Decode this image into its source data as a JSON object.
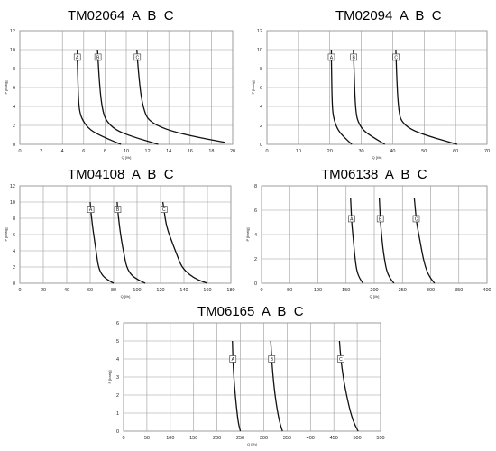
{
  "charts": [
    {
      "id": "tm02064",
      "title": "TM02064  A  B  C",
      "chart_data": {
        "type": "line",
        "title": "TM02064  A  B  C",
        "xlabel": "Q [l/h]",
        "ylabel": "P [bar/g]",
        "xlim": [
          0,
          20
        ],
        "ylim": [
          0,
          12
        ],
        "xticks": [
          "0",
          "2",
          "4",
          "6",
          "8",
          "10",
          "12",
          "14",
          "16",
          "18",
          "20"
        ],
        "yticks": [
          "0",
          "2",
          "4",
          "6",
          "8",
          "10",
          "12"
        ],
        "grid": true,
        "marker_y": 9.2,
        "series": [
          {
            "name": "A",
            "points": [
              [
                5.4,
                10
              ],
              [
                5.4,
                9
              ],
              [
                5.45,
                7
              ],
              [
                5.5,
                5
              ],
              [
                5.6,
                3.5
              ],
              [
                5.9,
                2.5
              ],
              [
                6.6,
                1.5
              ],
              [
                7.8,
                0.8
              ],
              [
                9.5,
                0
              ]
            ]
          },
          {
            "name": "B",
            "points": [
              [
                7.3,
                10
              ],
              [
                7.35,
                9
              ],
              [
                7.45,
                7
              ],
              [
                7.6,
                5
              ],
              [
                7.8,
                3.5
              ],
              [
                8.1,
                2.5
              ],
              [
                9.0,
                1.5
              ],
              [
                10.6,
                0.8
              ],
              [
                13.0,
                0
              ]
            ]
          },
          {
            "name": "C",
            "points": [
              [
                11.0,
                10
              ],
              [
                11.05,
                9
              ],
              [
                11.2,
                7
              ],
              [
                11.4,
                5
              ],
              [
                11.7,
                3.5
              ],
              [
                12.1,
                2.5
              ],
              [
                13.6,
                1.6
              ],
              [
                16.0,
                0.9
              ],
              [
                19.3,
                0.2
              ]
            ]
          }
        ]
      }
    },
    {
      "id": "tm02094",
      "title": "TM02094  A  B  C",
      "chart_data": {
        "type": "line",
        "title": "TM02094  A  B  C",
        "xlabel": "Q [l/h]",
        "ylabel": "P [bar/g]",
        "xlim": [
          0,
          70
        ],
        "ylim": [
          0,
          12
        ],
        "xticks": [
          "0",
          "10",
          "20",
          "30",
          "40",
          "50",
          "60",
          "70"
        ],
        "yticks": [
          "0",
          "2",
          "4",
          "6",
          "8",
          "10",
          "12"
        ],
        "grid": true,
        "marker_y": 9.2,
        "series": [
          {
            "name": "A",
            "points": [
              [
                20.5,
                10
              ],
              [
                20.5,
                9
              ],
              [
                20.6,
                7
              ],
              [
                20.7,
                5
              ],
              [
                20.9,
                3.5
              ],
              [
                21.4,
                2.5
              ],
              [
                22.6,
                1.5
              ],
              [
                24.4,
                0.8
              ],
              [
                27.0,
                0
              ]
            ]
          },
          {
            "name": "B",
            "points": [
              [
                27.5,
                10
              ],
              [
                27.6,
                9
              ],
              [
                27.8,
                7
              ],
              [
                28.0,
                5
              ],
              [
                28.3,
                3.5
              ],
              [
                28.8,
                2.5
              ],
              [
                30.5,
                1.5
              ],
              [
                33.5,
                0.8
              ],
              [
                37.5,
                0
              ]
            ]
          },
          {
            "name": "C",
            "points": [
              [
                41.0,
                10
              ],
              [
                41.1,
                9
              ],
              [
                41.3,
                7
              ],
              [
                41.6,
                5
              ],
              [
                42.0,
                3.5
              ],
              [
                42.6,
                2.5
              ],
              [
                45.5,
                1.6
              ],
              [
                51.0,
                0.9
              ],
              [
                60.5,
                0
              ]
            ]
          }
        ]
      }
    },
    {
      "id": "tm04108",
      "title": "TM04108  A  B  C",
      "chart_data": {
        "type": "line",
        "title": "TM04108  A  B  C",
        "xlabel": "Q [l/h]",
        "ylabel": "P [bar/g]",
        "xlim": [
          0,
          180
        ],
        "ylim": [
          0,
          12
        ],
        "xticks": [
          "0",
          "20",
          "40",
          "60",
          "80",
          "100",
          "120",
          "140",
          "160",
          "180"
        ],
        "yticks": [
          "0",
          "2",
          "4",
          "6",
          "8",
          "10",
          "12"
        ],
        "grid": true,
        "marker_y": 9.1,
        "series": [
          {
            "name": "A",
            "points": [
              [
                60,
                10
              ],
              [
                60.5,
                9
              ],
              [
                62,
                7
              ],
              [
                64,
                5
              ],
              [
                65.5,
                3.5
              ],
              [
                67,
                2
              ],
              [
                70,
                1
              ],
              [
                75,
                0.4
              ],
              [
                80,
                0
              ]
            ]
          },
          {
            "name": "B",
            "points": [
              [
                83,
                10
              ],
              [
                83.5,
                9
              ],
              [
                85,
                7
              ],
              [
                87,
                5
              ],
              [
                89,
                3.5
              ],
              [
                91,
                2
              ],
              [
                95,
                1
              ],
              [
                101,
                0.4
              ],
              [
                107,
                0
              ]
            ]
          },
          {
            "name": "C",
            "points": [
              [
                122,
                10
              ],
              [
                123,
                9
              ],
              [
                125,
                7
              ],
              [
                130,
                5
              ],
              [
                134,
                3.5
              ],
              [
                138,
                2
              ],
              [
                145,
                1
              ],
              [
                152,
                0.4
              ],
              [
                160,
                0
              ]
            ]
          }
        ]
      }
    },
    {
      "id": "tm06138",
      "title": "TM06138  A  B  C",
      "chart_data": {
        "type": "line",
        "title": "TM06138  A  B  C",
        "xlabel": "Q [l/h]",
        "ylabel": "P [bar/g]",
        "xlim": [
          0,
          400
        ],
        "ylim": [
          0,
          8
        ],
        "xticks": [
          "0",
          "50",
          "100",
          "150",
          "200",
          "250",
          "300",
          "350",
          "400"
        ],
        "yticks": [
          "0",
          "2",
          "4",
          "6",
          "8"
        ],
        "grid": true,
        "marker_y": 5.3,
        "series": [
          {
            "name": "A",
            "points": [
              [
                158,
                7
              ],
              [
                159,
                6
              ],
              [
                160,
                5
              ],
              [
                162,
                4
              ],
              [
                164,
                3
              ],
              [
                166,
                2
              ],
              [
                169,
                1
              ],
              [
                174,
                0.4
              ],
              [
                180,
                0
              ]
            ]
          },
          {
            "name": "B",
            "points": [
              [
                209,
                7
              ],
              [
                210,
                6
              ],
              [
                211,
                5
              ],
              [
                213,
                4
              ],
              [
                215,
                3
              ],
              [
                218,
                2
              ],
              [
                222,
                1
              ],
              [
                228,
                0.4
              ],
              [
                235,
                0
              ]
            ]
          },
          {
            "name": "C",
            "points": [
              [
                271,
                7
              ],
              [
                273,
                6
              ],
              [
                275,
                5
              ],
              [
                279,
                4
              ],
              [
                283,
                3
              ],
              [
                287,
                2
              ],
              [
                293,
                1
              ],
              [
                300,
                0.4
              ],
              [
                307,
                0
              ]
            ]
          }
        ]
      }
    },
    {
      "id": "tm06165",
      "title": "TM06165  A  B  C",
      "chart_data": {
        "type": "line",
        "title": "TM06165  A  B  C",
        "xlabel": "Q [l/h]",
        "ylabel": "P [bar/g]",
        "xlim": [
          0,
          550
        ],
        "ylim": [
          0,
          6
        ],
        "xticks": [
          "0",
          "50",
          "100",
          "150",
          "200",
          "250",
          "300",
          "350",
          "400",
          "450",
          "500",
          "550"
        ],
        "yticks": [
          "0",
          "1",
          "2",
          "3",
          "4",
          "5",
          "6"
        ],
        "grid": true,
        "marker_y": 4.0,
        "series": [
          {
            "name": "A",
            "points": [
              [
                233,
                5
              ],
              [
                234,
                4
              ],
              [
                236,
                3
              ],
              [
                239,
                2
              ],
              [
                243,
                1
              ],
              [
                246,
                0.4
              ],
              [
                250,
                0
              ]
            ]
          },
          {
            "name": "B",
            "points": [
              [
                315,
                5
              ],
              [
                317,
                4
              ],
              [
                320,
                3
              ],
              [
                324,
                2
              ],
              [
                330,
                1
              ],
              [
                335,
                0.4
              ],
              [
                340,
                0
              ]
            ]
          },
          {
            "name": "C",
            "points": [
              [
                462,
                5
              ],
              [
                465,
                4
              ],
              [
                470,
                3
              ],
              [
                477,
                2
              ],
              [
                486,
                1
              ],
              [
                494,
                0.4
              ],
              [
                502,
                0
              ]
            ]
          }
        ]
      }
    }
  ]
}
